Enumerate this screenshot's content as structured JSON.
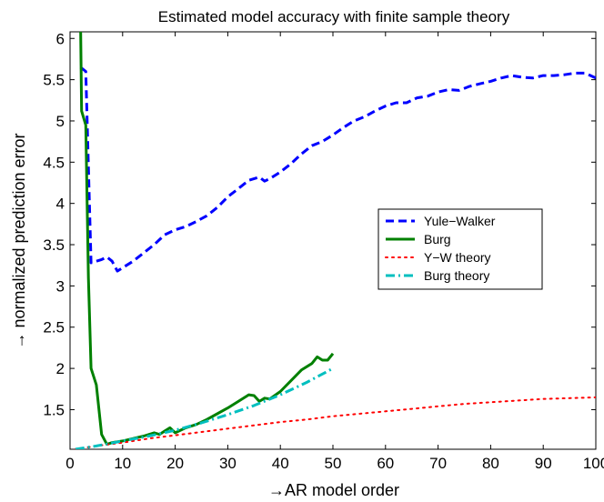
{
  "chart_data": {
    "type": "line",
    "title": "Estimated model accuracy with finite sample theory",
    "xlabel": "→AR model order",
    "ylabel": "→ normalized prediction error",
    "xlim": [
      0,
      100
    ],
    "ylim": [
      1.02,
      6.08
    ],
    "xticks": [
      0,
      10,
      20,
      30,
      40,
      50,
      60,
      70,
      80,
      90,
      100
    ],
    "yticks": [
      1.5,
      2,
      2.5,
      3,
      3.5,
      4,
      4.5,
      5,
      5.5,
      6
    ],
    "grid": false,
    "legend_position": "right",
    "series": [
      {
        "name": "Yule−Walker",
        "color": "#0000ff",
        "style": "dashed",
        "x": [
          2,
          3,
          4,
          5,
          6,
          7,
          8,
          9,
          10,
          12,
          14,
          16,
          18,
          20,
          22,
          24,
          26,
          28,
          30,
          32,
          34,
          36,
          37,
          38,
          40,
          42,
          44,
          46,
          48,
          50,
          52,
          54,
          56,
          58,
          60,
          62,
          64,
          66,
          68,
          70,
          72,
          74,
          76,
          78,
          80,
          82,
          84,
          86,
          88,
          90,
          92,
          94,
          96,
          98,
          100
        ],
        "y": [
          5.65,
          5.6,
          3.28,
          3.3,
          3.32,
          3.35,
          3.3,
          3.18,
          3.22,
          3.3,
          3.4,
          3.5,
          3.62,
          3.68,
          3.72,
          3.78,
          3.85,
          3.95,
          4.08,
          4.18,
          4.28,
          4.32,
          4.27,
          4.3,
          4.38,
          4.48,
          4.6,
          4.7,
          4.75,
          4.83,
          4.92,
          5.0,
          5.05,
          5.12,
          5.18,
          5.22,
          5.22,
          5.28,
          5.3,
          5.35,
          5.38,
          5.37,
          5.42,
          5.45,
          5.48,
          5.52,
          5.55,
          5.53,
          5.52,
          5.55,
          5.55,
          5.56,
          5.58,
          5.58,
          5.52
        ]
      },
      {
        "name": "Burg",
        "color": "#008000",
        "style": "solid",
        "x": [
          2,
          2.2,
          3,
          3.5,
          4,
          5,
          6,
          7,
          8,
          10,
          12,
          14,
          16,
          17,
          18,
          19,
          20,
          22,
          24,
          26,
          28,
          30,
          32,
          34,
          35,
          36,
          37,
          38,
          40,
          42,
          44,
          46,
          47,
          48,
          49,
          50
        ],
        "y": [
          6.15,
          5.12,
          4.95,
          3.1,
          2.0,
          1.8,
          1.2,
          1.08,
          1.1,
          1.12,
          1.15,
          1.18,
          1.22,
          1.2,
          1.24,
          1.28,
          1.22,
          1.28,
          1.32,
          1.38,
          1.45,
          1.52,
          1.6,
          1.68,
          1.67,
          1.6,
          1.64,
          1.63,
          1.72,
          1.85,
          1.98,
          2.06,
          2.14,
          2.1,
          2.1,
          2.18
        ]
      },
      {
        "name": "Y−W theory",
        "color": "#ff0000",
        "style": "dotted",
        "x": [
          1,
          5,
          10,
          15,
          20,
          25,
          30,
          35,
          40,
          45,
          50,
          55,
          60,
          65,
          70,
          75,
          80,
          85,
          90,
          95,
          100
        ],
        "y": [
          1.02,
          1.06,
          1.1,
          1.15,
          1.19,
          1.23,
          1.27,
          1.31,
          1.35,
          1.38,
          1.42,
          1.45,
          1.48,
          1.51,
          1.54,
          1.57,
          1.59,
          1.61,
          1.63,
          1.64,
          1.65
        ]
      },
      {
        "name": "Burg theory",
        "color": "#00bfbf",
        "style": "dashdot",
        "x": [
          1,
          5,
          10,
          15,
          20,
          25,
          30,
          35,
          40,
          45,
          50
        ],
        "y": [
          1.02,
          1.06,
          1.12,
          1.18,
          1.25,
          1.34,
          1.44,
          1.55,
          1.68,
          1.83,
          2.0
        ]
      }
    ]
  }
}
